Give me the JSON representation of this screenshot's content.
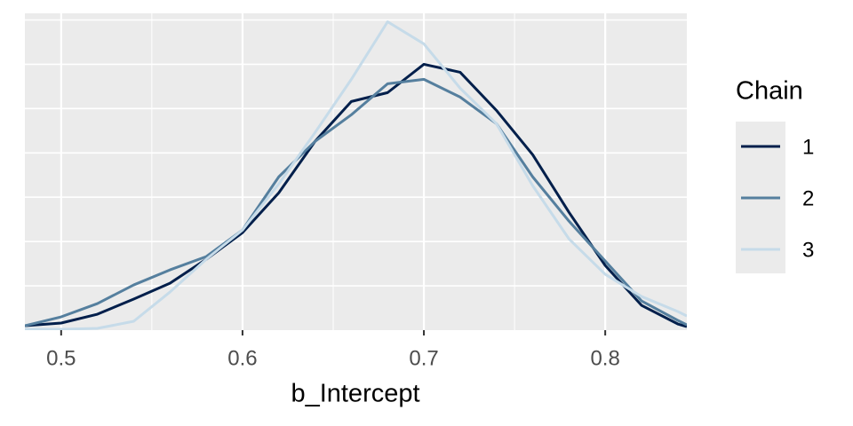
{
  "chart_data": {
    "type": "line",
    "x_label": "b_Intercept",
    "legend_title": "Chain",
    "x": [
      0.48,
      0.5,
      0.52,
      0.54,
      0.56,
      0.58,
      0.6,
      0.62,
      0.64,
      0.66,
      0.68,
      0.7,
      0.72,
      0.74,
      0.76,
      0.78,
      0.8,
      0.82,
      0.84,
      0.845
    ],
    "series": [
      {
        "name": "1",
        "color": "#011f4b",
        "values": [
          0.1,
          0.16,
          0.36,
          0.7,
          1.06,
          1.6,
          2.2,
          3.1,
          4.26,
          5.16,
          5.36,
          6.0,
          5.82,
          4.96,
          3.96,
          2.66,
          1.46,
          0.56,
          0.14,
          0.08
        ]
      },
      {
        "name": "2",
        "color": "#557f9e",
        "values": [
          0.1,
          0.3,
          0.6,
          1.02,
          1.36,
          1.66,
          2.26,
          3.46,
          4.26,
          4.86,
          5.56,
          5.66,
          5.26,
          4.66,
          3.46,
          2.46,
          1.56,
          0.66,
          0.22,
          0.12
        ]
      },
      {
        "name": "3",
        "color": "#c6dbe9",
        "values": [
          0.02,
          0.02,
          0.04,
          0.2,
          0.86,
          1.6,
          2.26,
          3.3,
          4.46,
          5.66,
          6.96,
          6.46,
          5.46,
          4.66,
          3.26,
          2.06,
          1.26,
          0.76,
          0.42,
          0.32
        ]
      }
    ],
    "xlim": [
      0.48,
      0.845
    ],
    "xticks": [
      0.5,
      0.6,
      0.7,
      0.8
    ],
    "ylim": [
      0,
      7.15
    ],
    "yticks": [
      1,
      2,
      3,
      4,
      5,
      6,
      7
    ],
    "grid": true,
    "legend_position": "right"
  }
}
